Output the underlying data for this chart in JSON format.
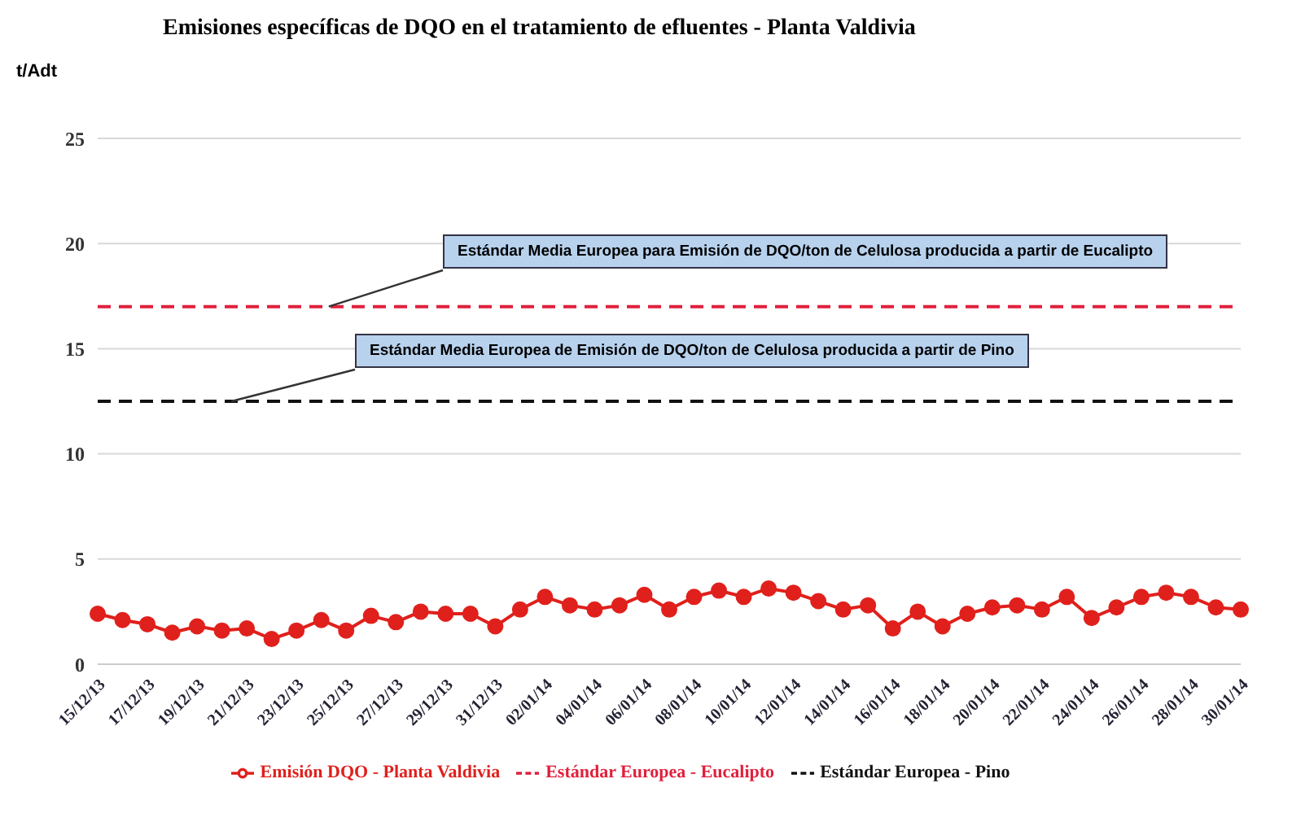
{
  "chart_data": {
    "type": "line",
    "title": "Emisiones específicas de DQO en el tratamiento de efluentes - Planta Valdivia",
    "ylabel": "t/Adt",
    "categories": [
      "15/12/13",
      null,
      "17/12/13",
      null,
      "19/12/13",
      null,
      "21/12/13",
      null,
      "23/12/13",
      null,
      "25/12/13",
      null,
      "27/12/13",
      null,
      "29/12/13",
      null,
      "31/12/13",
      null,
      "02/01/14",
      null,
      "04/01/14",
      null,
      "06/01/14",
      null,
      "08/01/14",
      null,
      "10/01/14",
      null,
      "12/01/14",
      null,
      "14/01/14",
      null,
      "16/01/14",
      null,
      "18/01/14",
      null,
      "20/01/14",
      null,
      "22/01/14",
      null,
      "24/01/14",
      null,
      "26/01/14",
      null,
      "28/01/14",
      null,
      "30/01/14"
    ],
    "series": [
      {
        "name": "Emisión DQO - Planta Valdivia",
        "color": "#e0201c",
        "marker": "circle",
        "line_style": "solid",
        "values": [
          2.4,
          2.1,
          1.9,
          1.5,
          1.8,
          1.6,
          1.7,
          1.2,
          1.6,
          2.1,
          1.6,
          2.3,
          2.0,
          2.5,
          2.4,
          2.4,
          1.8,
          2.6,
          3.2,
          2.8,
          2.6,
          2.8,
          3.3,
          2.6,
          3.2,
          3.5,
          3.2,
          3.6,
          3.4,
          3.0,
          2.6,
          2.8,
          1.7,
          2.5,
          1.8,
          2.4,
          2.7,
          2.8,
          2.6,
          3.2,
          2.2,
          2.7,
          3.2,
          3.4,
          3.2,
          2.7,
          2.6
        ]
      },
      {
        "name": "Estándar Europea - Eucalipto",
        "color": "#e0203c",
        "marker": "none",
        "line_style": "dashed",
        "values": [
          17,
          17,
          17,
          17,
          17,
          17,
          17,
          17,
          17,
          17,
          17,
          17,
          17,
          17,
          17,
          17,
          17,
          17,
          17,
          17,
          17,
          17,
          17,
          17,
          17,
          17,
          17,
          17,
          17,
          17,
          17,
          17,
          17,
          17,
          17,
          17,
          17,
          17,
          17,
          17,
          17,
          17,
          17,
          17,
          17,
          17,
          17
        ]
      },
      {
        "name": "Estándar Europea - Pino",
        "color": "#111111",
        "marker": "none",
        "line_style": "dashed",
        "values": [
          12.5,
          12.5,
          12.5,
          12.5,
          12.5,
          12.5,
          12.5,
          12.5,
          12.5,
          12.5,
          12.5,
          12.5,
          12.5,
          12.5,
          12.5,
          12.5,
          12.5,
          12.5,
          12.5,
          12.5,
          12.5,
          12.5,
          12.5,
          12.5,
          12.5,
          12.5,
          12.5,
          12.5,
          12.5,
          12.5,
          12.5,
          12.5,
          12.5,
          12.5,
          12.5,
          12.5,
          12.5,
          12.5,
          12.5,
          12.5,
          12.5,
          12.5,
          12.5,
          12.5,
          12.5,
          12.5,
          12.5
        ]
      }
    ],
    "annotations": [
      {
        "text": "Estándar Media Europea para Emisión de DQO/ton de Celulosa producida a partir de Eucalipto",
        "y": 17
      },
      {
        "text": "Estándar Media Europea de Emisión de DQO/ton de Celulosa producida a partir de Pino",
        "y": 12.5
      }
    ],
    "ylim": [
      0,
      25
    ],
    "yticks": [
      0,
      5,
      10,
      15,
      20,
      25
    ],
    "grid": "y",
    "legend": "bottom"
  }
}
